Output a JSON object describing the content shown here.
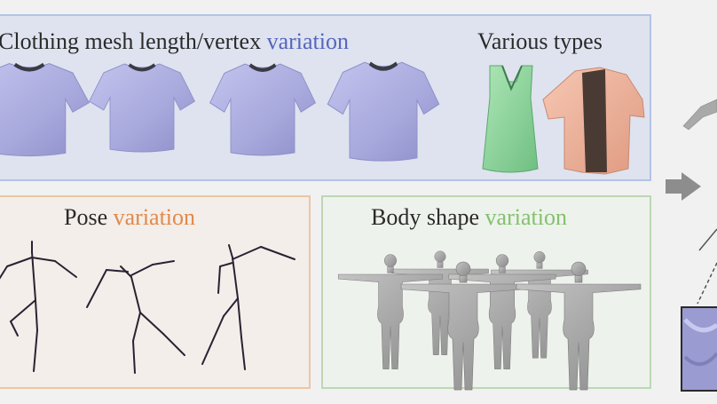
{
  "clothing_panel": {
    "title_main": "Clothing mesh length/vertex ",
    "title_accent": "variation",
    "types_title": "Various types",
    "accent_color": "#5566bd"
  },
  "pose_panel": {
    "title_main": "Pose ",
    "title_accent": "variation",
    "accent_color": "#e2884a"
  },
  "body_panel": {
    "title_main": "Body shape ",
    "title_accent": "variation",
    "accent_color": "#83c16d"
  },
  "colors": {
    "shirt": "#a7a8dc",
    "dress": "#8fd39c",
    "coat": "#eeaf98",
    "coat_lining": "#4a3a34",
    "body_mesh": "#a9a9a9",
    "skeleton": "#2a2233"
  },
  "icons": [
    "arrow-right-icon"
  ]
}
